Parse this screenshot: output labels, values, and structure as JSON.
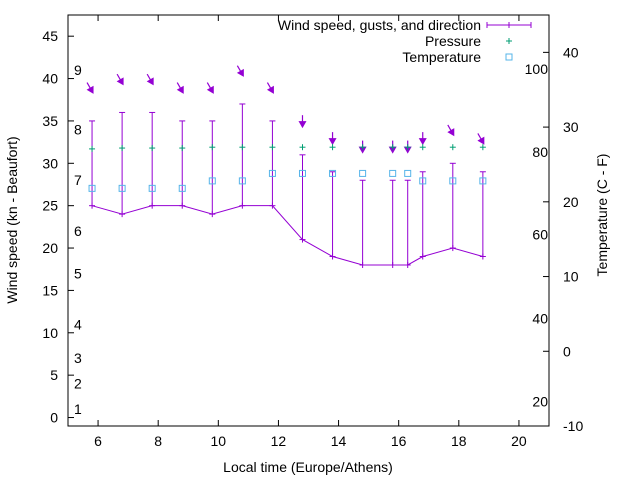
{
  "chart_data": {
    "type": "line",
    "title": "",
    "xlabel": "Local time (Europe/Athens)",
    "ylabel": "Wind speed (kn - Beaufort)",
    "y2label": "Temperature (C - F)",
    "xlim": [
      5,
      21
    ],
    "ylim": [
      -1,
      47.5
    ],
    "y2lim": [
      -10,
      45
    ],
    "x_ticks": [
      "6",
      "8",
      "10",
      "12",
      "14",
      "16",
      "18",
      "20"
    ],
    "y_ticks": [
      "0",
      "5",
      "10",
      "15",
      "20",
      "25",
      "30",
      "35",
      "40",
      "45"
    ],
    "y2_ticks": [
      "-10",
      "0",
      "10",
      "20",
      "30",
      "40"
    ],
    "beaufort_labels": [
      {
        "label": "1",
        "y": 1
      },
      {
        "label": "2",
        "y": 4
      },
      {
        "label": "3",
        "y": 7
      },
      {
        "label": "4",
        "y": 11
      },
      {
        "label": "5",
        "y": 17
      },
      {
        "label": "6",
        "y": 22
      },
      {
        "label": "7",
        "y": 28
      },
      {
        "label": "8",
        "y": 34
      },
      {
        "label": "9",
        "y": 41
      }
    ],
    "fahrenheit_labels": [
      {
        "label": "20",
        "y": -6.7
      },
      {
        "label": "40",
        "y": 4.4
      },
      {
        "label": "60",
        "y": 15.6
      },
      {
        "label": "80",
        "y": 26.7
      },
      {
        "label": "100",
        "y": 37.8
      }
    ],
    "legend": [
      {
        "name": "Wind speed, gusts, and direction",
        "color": "#9400d3"
      },
      {
        "name": "Pressure",
        "color": "#009e73"
      },
      {
        "name": "Temperature",
        "color": "#56b4e9"
      }
    ],
    "legend_position": "top-right",
    "series": [
      {
        "name": "Wind speed",
        "x": [
          5.8,
          6.8,
          7.8,
          8.8,
          9.8,
          10.8,
          11.8,
          12.8,
          13.8,
          14.8,
          15.8,
          16.3,
          16.8,
          17.8,
          18.8
        ],
        "speed": [
          25,
          24,
          25,
          25,
          24,
          25,
          25,
          21,
          19,
          18,
          18,
          18,
          19,
          20,
          19
        ],
        "gust": [
          35,
          36,
          36,
          35,
          35,
          37,
          35,
          31,
          29,
          28,
          28,
          28,
          29,
          30,
          29
        ],
        "direction_y": [
          38.5,
          39.5,
          39.5,
          38.5,
          38.5,
          40.5,
          38.5,
          34.5,
          32.5,
          31.5,
          31.5,
          31.5,
          32.5,
          33.5,
          32.5
        ],
        "direction_deg": [
          330,
          330,
          330,
          330,
          330,
          330,
          330,
          0,
          0,
          0,
          0,
          0,
          0,
          330,
          330
        ]
      },
      {
        "name": "Pressure",
        "x": [
          5.8,
          6.8,
          7.8,
          8.8,
          9.8,
          10.8,
          11.8,
          12.8,
          13.8,
          14.8,
          15.8,
          16.3,
          16.8,
          17.8,
          18.8
        ],
        "y": [
          31.7,
          31.8,
          31.8,
          31.8,
          31.9,
          31.9,
          31.9,
          31.9,
          31.9,
          31.9,
          31.9,
          31.9,
          31.9,
          31.9,
          31.9
        ]
      },
      {
        "name": "Temperature",
        "x": [
          5.8,
          6.8,
          7.8,
          8.8,
          9.8,
          10.8,
          11.8,
          12.8,
          13.8,
          14.8,
          15.8,
          16.3,
          16.8,
          17.8,
          18.8
        ],
        "y_celsius": [
          21.8,
          21.8,
          21.8,
          21.8,
          22.8,
          22.8,
          23.8,
          23.8,
          23.8,
          23.8,
          23.8,
          23.8,
          22.8,
          22.8,
          22.8
        ]
      }
    ]
  }
}
